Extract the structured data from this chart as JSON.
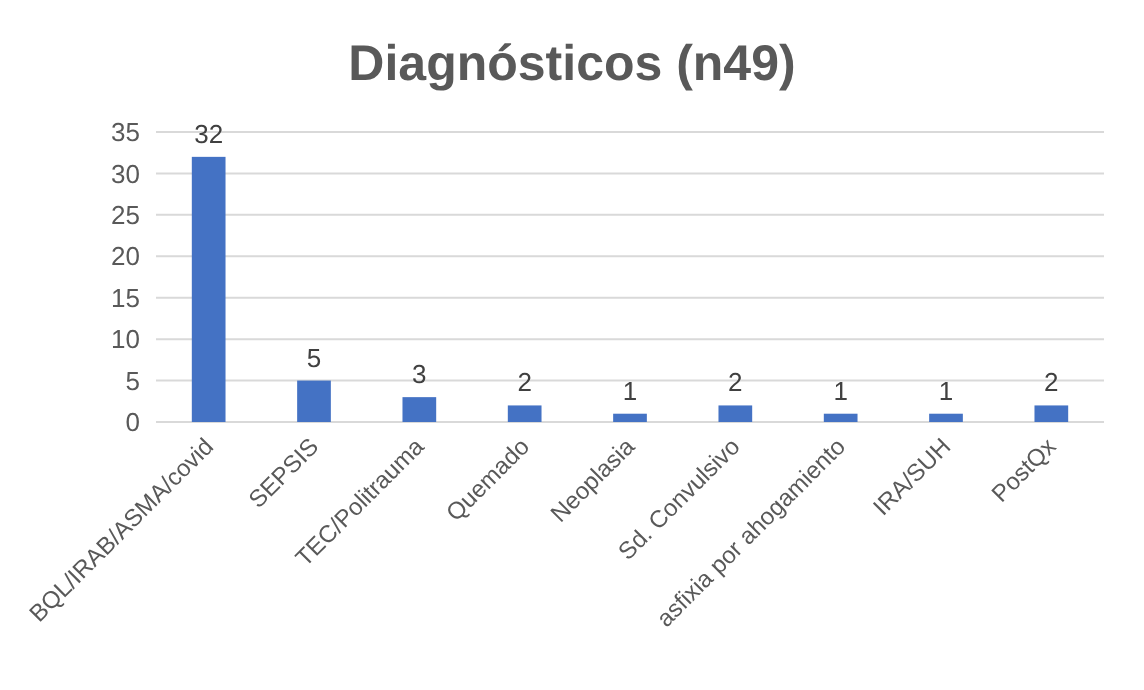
{
  "chart_data": {
    "type": "bar",
    "title": "Diagnósticos (n49)",
    "categories": [
      "BQL/IRAB/ASMA/covid",
      "SEPSIS",
      "TEC/Politrauma",
      "Quemado",
      "Neoplasia",
      "Sd. Convulsivo",
      "asfixia por ahogamiento",
      "IRA/SUH",
      "PostQx"
    ],
    "values": [
      32,
      5,
      3,
      2,
      1,
      2,
      1,
      1,
      2
    ],
    "color": "#4472c4",
    "ylim": [
      0,
      35
    ],
    "yticks": [
      0,
      5,
      10,
      15,
      20,
      25,
      30,
      35
    ],
    "grid": "y",
    "data_labels": true
  }
}
